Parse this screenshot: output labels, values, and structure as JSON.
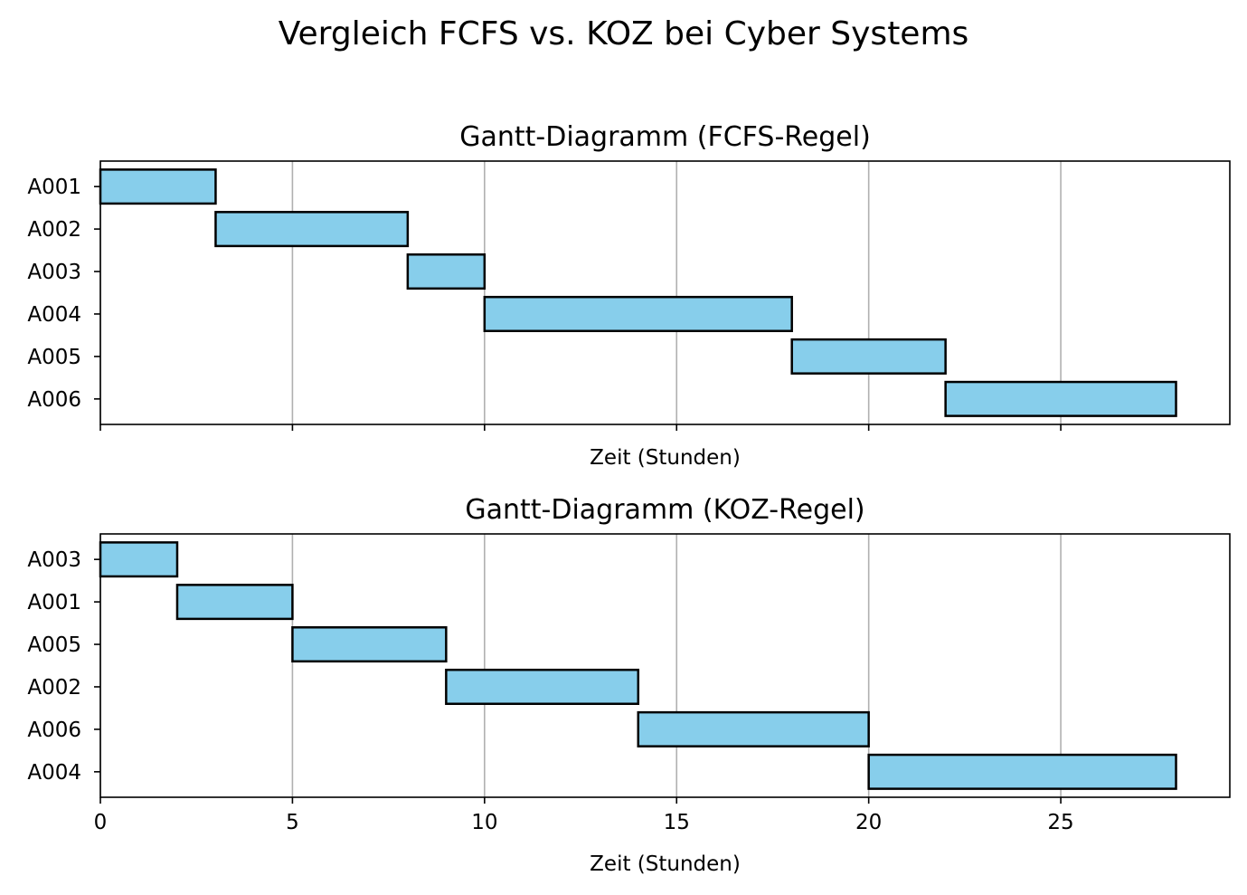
{
  "figure": {
    "title": "Vergleich FCFS vs. KOZ bei Cyber Systems"
  },
  "colors": {
    "bar_fill": "#87ceeb",
    "bar_edge": "#000000",
    "grid": "#b0b0b0"
  },
  "chart_data": [
    {
      "type": "gantt",
      "title": "Gantt-Diagramm (FCFS-Regel)",
      "xlabel": "Zeit (Stunden)",
      "ylabel": "",
      "xlim": [
        0,
        29.4
      ],
      "xticks": [
        0,
        5,
        10,
        15,
        20,
        25
      ],
      "show_xtick_labels": false,
      "grid": "x",
      "tasks": [
        {
          "label": "A001",
          "start": 0,
          "end": 3
        },
        {
          "label": "A002",
          "start": 3,
          "end": 8
        },
        {
          "label": "A003",
          "start": 8,
          "end": 10
        },
        {
          "label": "A004",
          "start": 10,
          "end": 18
        },
        {
          "label": "A005",
          "start": 18,
          "end": 22
        },
        {
          "label": "A006",
          "start": 22,
          "end": 28
        }
      ]
    },
    {
      "type": "gantt",
      "title": "Gantt-Diagramm (KOZ-Regel)",
      "xlabel": "Zeit (Stunden)",
      "ylabel": "",
      "xlim": [
        0,
        29.4
      ],
      "xticks": [
        0,
        5,
        10,
        15,
        20,
        25
      ],
      "show_xtick_labels": true,
      "grid": "x",
      "tasks": [
        {
          "label": "A003",
          "start": 0,
          "end": 2
        },
        {
          "label": "A001",
          "start": 2,
          "end": 5
        },
        {
          "label": "A005",
          "start": 5,
          "end": 9
        },
        {
          "label": "A002",
          "start": 9,
          "end": 14
        },
        {
          "label": "A006",
          "start": 14,
          "end": 20
        },
        {
          "label": "A004",
          "start": 20,
          "end": 28
        }
      ]
    }
  ]
}
